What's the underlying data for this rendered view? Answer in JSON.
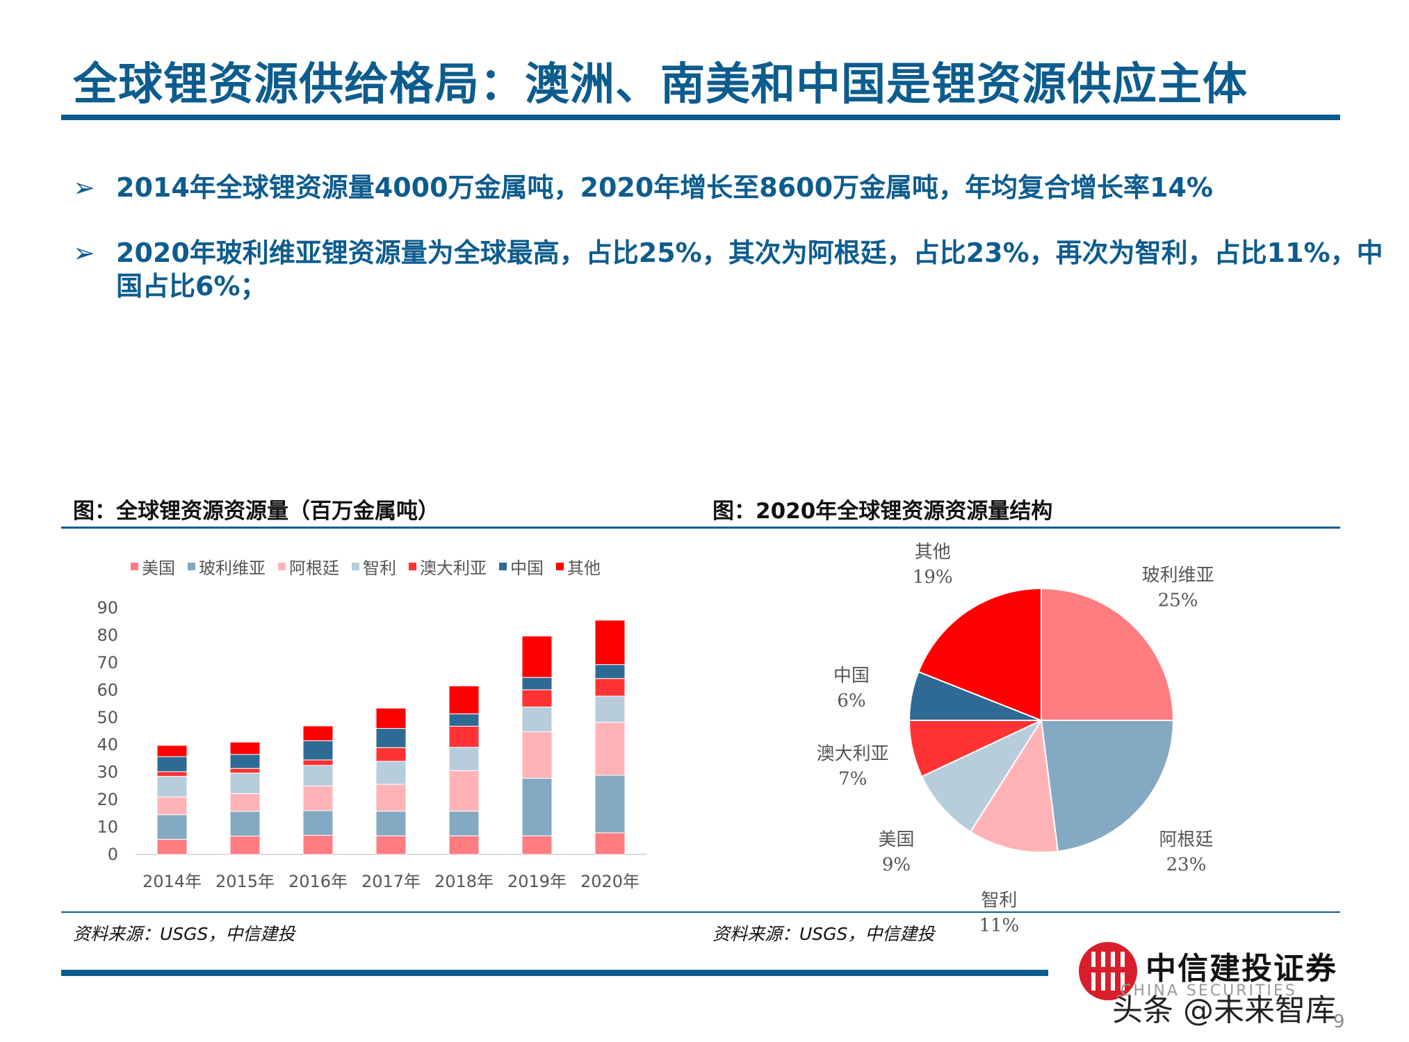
{
  "header": {
    "title": "全球锂资源供给格局：澳洲、南美和中国是锂资源供应主体"
  },
  "bullets": [
    {
      "mark": "➢",
      "text": "2014年全球锂资源量4000万金属吨，2020年增长至8600万金属吨，年均复合增长率14%"
    },
    {
      "mark": "➢",
      "text": "2020年玻利维亚锂资源量为全球最高，占比25%，其次为阿根廷，占比23%，再次为智利，占比11%，中国占比6%；"
    }
  ],
  "left_panel": {
    "caption": "图：全球锂资源资源量（百万金属吨）",
    "source": "资料来源：USGS，中信建投"
  },
  "right_panel": {
    "caption": "图：2020年全球锂资源资源量结构",
    "source": "资料来源：USGS，中信建投"
  },
  "chart_data": [
    {
      "type": "bar",
      "stacked": true,
      "categories": [
        "2014年",
        "2015年",
        "2016年",
        "2017年",
        "2018年",
        "2019年",
        "2020年"
      ],
      "ylim": [
        0,
        90
      ],
      "yticks": [
        0,
        10,
        20,
        30,
        40,
        50,
        60,
        70,
        80,
        90
      ],
      "legend_position": "top",
      "series": [
        {
          "name": "美国",
          "color": "#ff7c80",
          "values": [
            5.5,
            6.7,
            7.0,
            6.8,
            6.8,
            6.8,
            7.9
          ]
        },
        {
          "name": "玻利维亚",
          "color": "#84a9c2",
          "values": [
            9.0,
            9.0,
            9.0,
            9.0,
            9.0,
            21.0,
            21.0
          ]
        },
        {
          "name": "阿根廷",
          "color": "#ffb3b6",
          "values": [
            6.5,
            6.5,
            9.0,
            9.8,
            14.8,
            17.0,
            19.3
          ]
        },
        {
          "name": "智利",
          "color": "#b8cddb",
          "values": [
            7.5,
            7.5,
            7.5,
            8.4,
            8.5,
            9.0,
            9.6
          ]
        },
        {
          "name": "澳大利亚",
          "color": "#ff3333",
          "values": [
            1.7,
            1.7,
            2.0,
            5.0,
            7.7,
            6.3,
            6.4
          ]
        },
        {
          "name": "中国",
          "color": "#2e6a94",
          "values": [
            5.5,
            5.1,
            7.0,
            7.0,
            4.5,
            4.5,
            5.1
          ]
        },
        {
          "name": "其他",
          "color": "#ff0000",
          "values": [
            4.1,
            4.5,
            5.4,
            7.4,
            10.2,
            15.1,
            16.2
          ]
        }
      ]
    },
    {
      "type": "pie",
      "slices": [
        {
          "name": "玻利维亚",
          "pct_label": "25%",
          "value": 25,
          "color": "#ff7c80"
        },
        {
          "name": "阿根廷",
          "pct_label": "23%",
          "value": 23,
          "color": "#84a9c2"
        },
        {
          "name": "智利",
          "pct_label": "11%",
          "value": 11,
          "color": "#ffb3b6"
        },
        {
          "name": "美国",
          "pct_label": "9%",
          "value": 9,
          "color": "#b8cddb"
        },
        {
          "name": "澳大利亚",
          "pct_label": "7%",
          "value": 7,
          "color": "#ff3333"
        },
        {
          "name": "中国",
          "pct_label": "6%",
          "value": 6,
          "color": "#2e6a94"
        },
        {
          "name": "其他",
          "pct_label": "19%",
          "value": 19,
          "color": "#ff0000"
        }
      ]
    }
  ],
  "footer": {
    "logo_name": "中信建投证券",
    "logo_sub": "CHINA SECURITIES",
    "watermark": "头条 @未来智库",
    "page_number": "9"
  }
}
